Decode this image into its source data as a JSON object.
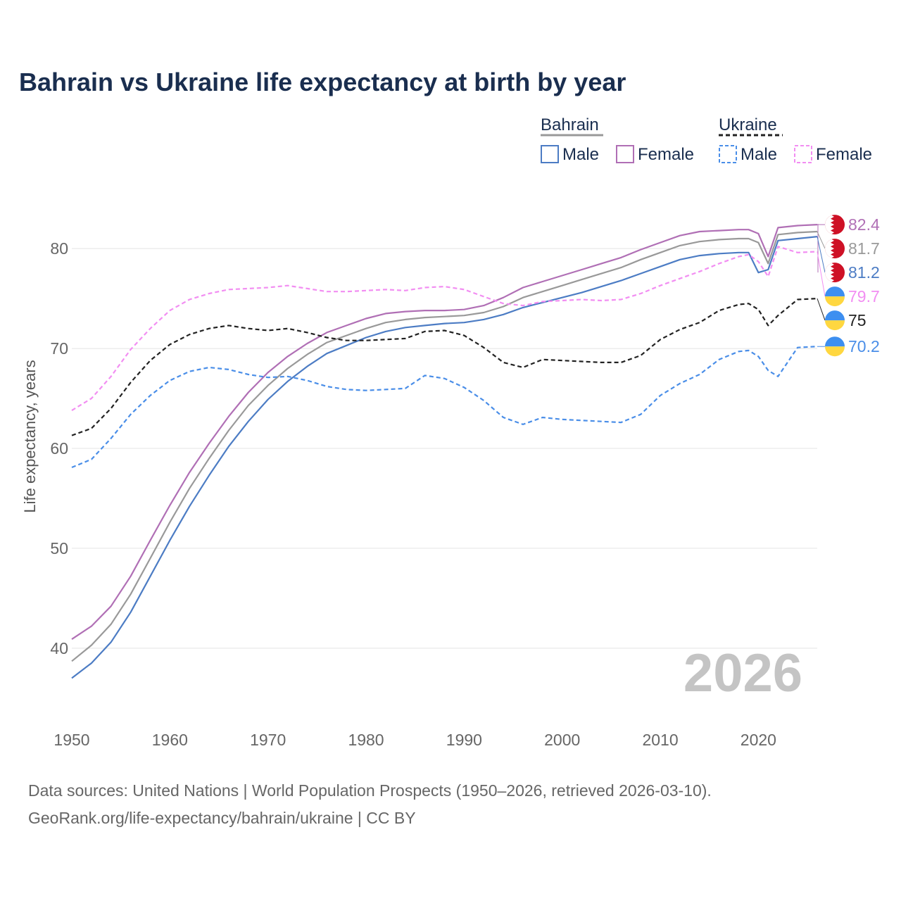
{
  "chart_data": {
    "type": "line",
    "title": "Bahrain vs Ukraine life expectancy at birth by year",
    "ylabel": "Life expectancy, years",
    "xlabel": "",
    "xlim": [
      1950,
      2026
    ],
    "ylim": [
      34,
      86
    ],
    "x_ticks": [
      1950,
      1960,
      1970,
      1980,
      1990,
      2000,
      2010,
      2020
    ],
    "y_ticks": [
      40,
      50,
      60,
      70,
      80
    ],
    "year_watermark": "2026",
    "legend": {
      "groups": [
        {
          "name": "Bahrain",
          "entries": [
            "Male",
            "Female"
          ]
        },
        {
          "name": "Ukraine",
          "entries": [
            "Male",
            "Female"
          ]
        }
      ]
    },
    "x": [
      1950,
      1952,
      1954,
      1956,
      1958,
      1960,
      1962,
      1964,
      1966,
      1968,
      1970,
      1972,
      1974,
      1976,
      1978,
      1980,
      1982,
      1984,
      1986,
      1988,
      1990,
      1992,
      1994,
      1996,
      1998,
      2000,
      2002,
      2004,
      2006,
      2008,
      2010,
      2012,
      2014,
      2016,
      2018,
      2019,
      2020,
      2021,
      2022,
      2024,
      2026
    ],
    "series": [
      {
        "name": "Bahrain Female",
        "country": "Bahrain",
        "sex": "Female",
        "color": "#b06fb5",
        "dashed": false,
        "values": [
          40.9,
          42.2,
          44.2,
          47.2,
          50.8,
          54.3,
          57.6,
          60.5,
          63.2,
          65.6,
          67.6,
          69.2,
          70.5,
          71.6,
          72.3,
          73.0,
          73.5,
          73.7,
          73.8,
          73.8,
          73.9,
          74.3,
          75.1,
          76.1,
          76.7,
          77.3,
          77.9,
          78.5,
          79.1,
          79.9,
          80.6,
          81.3,
          81.7,
          81.8,
          81.9,
          81.9,
          81.5,
          79.2,
          82.1,
          82.3,
          82.4
        ],
        "end_label": "82.4"
      },
      {
        "name": "Bahrain Both",
        "country": "Bahrain",
        "sex": "Both",
        "color": "#999999",
        "dashed": false,
        "values": [
          38.7,
          40.3,
          42.4,
          45.4,
          49.0,
          52.6,
          56.0,
          59.0,
          61.8,
          64.3,
          66.3,
          68.0,
          69.4,
          70.6,
          71.3,
          72.0,
          72.6,
          72.9,
          73.1,
          73.2,
          73.3,
          73.6,
          74.2,
          75.1,
          75.7,
          76.3,
          76.9,
          77.5,
          78.1,
          78.9,
          79.6,
          80.3,
          80.7,
          80.9,
          81.0,
          81.0,
          80.6,
          78.5,
          81.4,
          81.6,
          81.7
        ],
        "end_label": "81.7"
      },
      {
        "name": "Bahrain Male",
        "country": "Bahrain",
        "sex": "Male",
        "color": "#4c7cc4",
        "dashed": false,
        "values": [
          37.0,
          38.5,
          40.6,
          43.6,
          47.2,
          50.8,
          54.2,
          57.3,
          60.2,
          62.7,
          64.9,
          66.7,
          68.2,
          69.5,
          70.3,
          71.1,
          71.7,
          72.1,
          72.3,
          72.5,
          72.6,
          72.9,
          73.4,
          74.1,
          74.6,
          75.1,
          75.6,
          76.2,
          76.8,
          77.5,
          78.2,
          78.9,
          79.3,
          79.5,
          79.6,
          79.6,
          77.6,
          77.9,
          80.8,
          81.0,
          81.2
        ],
        "end_label": "81.2"
      },
      {
        "name": "Ukraine Female",
        "country": "Ukraine",
        "sex": "Female",
        "color": "#f28ef2",
        "dashed": true,
        "values": [
          63.8,
          65.0,
          67.2,
          69.9,
          72.0,
          73.8,
          74.9,
          75.5,
          75.9,
          76.0,
          76.1,
          76.3,
          76.0,
          75.7,
          75.7,
          75.8,
          75.9,
          75.8,
          76.1,
          76.2,
          75.9,
          75.2,
          74.5,
          74.3,
          74.7,
          74.8,
          74.9,
          74.8,
          74.9,
          75.5,
          76.3,
          77.0,
          77.7,
          78.5,
          79.2,
          79.4,
          78.7,
          77.2,
          80.2,
          79.6,
          79.7
        ],
        "end_label": "79.7"
      },
      {
        "name": "Ukraine Both",
        "country": "Ukraine",
        "sex": "Both",
        "color": "#222222",
        "dashed": true,
        "values": [
          61.3,
          62.0,
          64.0,
          66.6,
          68.8,
          70.4,
          71.4,
          72.0,
          72.3,
          72.0,
          71.8,
          72.0,
          71.6,
          71.1,
          70.8,
          70.8,
          70.9,
          71.0,
          71.7,
          71.8,
          71.3,
          70.1,
          68.6,
          68.1,
          68.9,
          68.8,
          68.7,
          68.6,
          68.6,
          69.3,
          70.9,
          71.9,
          72.6,
          73.8,
          74.4,
          74.5,
          73.9,
          72.3,
          73.3,
          74.9,
          75.0
        ],
        "end_label": "75"
      },
      {
        "name": "Ukraine Male",
        "country": "Ukraine",
        "sex": "Male",
        "color": "#4a8ee8",
        "dashed": true,
        "values": [
          58.1,
          58.9,
          61.0,
          63.4,
          65.3,
          66.8,
          67.7,
          68.1,
          67.9,
          67.4,
          67.1,
          67.2,
          66.8,
          66.2,
          65.9,
          65.8,
          65.9,
          66.0,
          67.3,
          67.0,
          66.1,
          64.8,
          63.1,
          62.4,
          63.1,
          62.9,
          62.8,
          62.7,
          62.6,
          63.4,
          65.3,
          66.5,
          67.4,
          68.9,
          69.7,
          69.8,
          69.2,
          67.8,
          67.2,
          70.1,
          70.2
        ],
        "end_label": "70.2"
      }
    ]
  },
  "footer": {
    "source_line": "Data sources: United Nations | World Population Prospects (1950–2026, retrieved 2026-03-10).",
    "url_line": "GeoRank.org/life-expectancy/bahrain/ukraine | CC BY"
  },
  "colors": {
    "title": "#1a2e4f",
    "grid": "#e4e4e4",
    "bahrain_flag_red": "#ce1126",
    "ukraine_flag_blue": "#3d8ff0",
    "ukraine_flag_yellow": "#ffd740"
  }
}
